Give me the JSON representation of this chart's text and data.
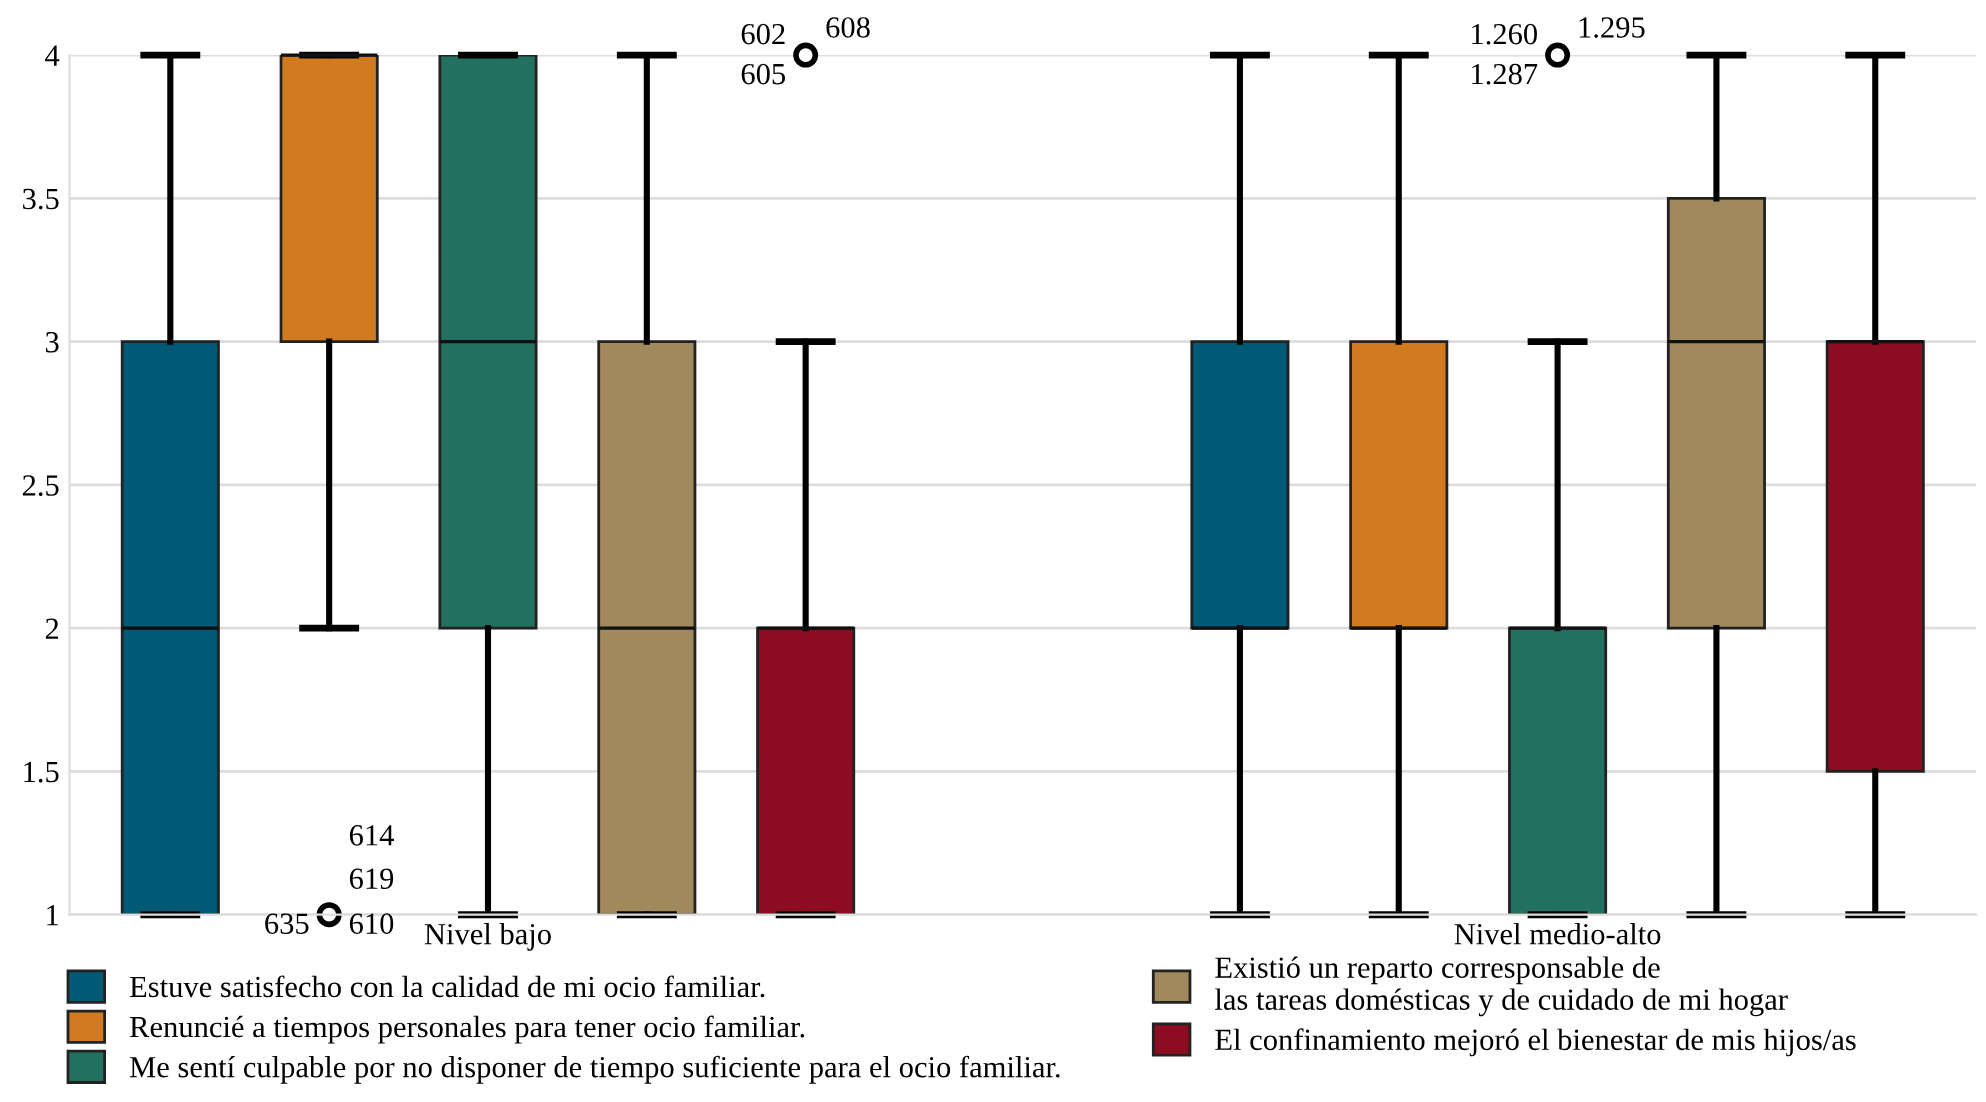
{
  "chart_data": {
    "type": "box",
    "categories": [
      "Nivel bajo",
      "Nivel medio-alto"
    ],
    "series": [
      {
        "name": "Estuve satisfecho con la calidad de mi ocio familiar.",
        "color": "#005a75",
        "boxes": [
          {
            "low": 1,
            "q1": 1,
            "median": 2,
            "q3": 3,
            "high": 4
          },
          {
            "low": 1,
            "q1": 2,
            "median": 2,
            "q3": 3,
            "high": 4
          }
        ]
      },
      {
        "name": "Renuncié a tiempos personales para tener ocio familiar.",
        "color": "#d07b20",
        "boxes": [
          {
            "low": 2,
            "q1": 3,
            "median": 4,
            "q3": 4,
            "high": 4,
            "outliers": [
              1
            ]
          },
          {
            "low": 1,
            "q1": 2,
            "median": 2,
            "q3": 3,
            "high": 4
          }
        ]
      },
      {
        "name": "Me sentí culpable por no disponer de tiempo suficiente para el ocio familiar.",
        "color": "#217060",
        "boxes": [
          {
            "low": 1,
            "q1": 2,
            "median": 3,
            "q3": 4,
            "high": 4
          },
          {
            "low": 1,
            "q1": 1,
            "median": 2,
            "q3": 2,
            "high": 3,
            "outliers": [
              4
            ]
          }
        ]
      },
      {
        "name": "Existió un reparto corresponsable de\nlas tareas domésticas y de cuidado de mi hogar",
        "color": "#a0895c",
        "boxes": [
          {
            "low": 1,
            "q1": 1,
            "median": 2,
            "q3": 3,
            "high": 4
          },
          {
            "low": 1,
            "q1": 2,
            "median": 3,
            "q3": 3.5,
            "high": 4
          }
        ]
      },
      {
        "name": "El confinamiento mejoró el bienestar de mis hijos/as",
        "color": "#8e0c22",
        "boxes": [
          {
            "low": 1,
            "q1": 1,
            "median": 2,
            "q3": 2,
            "high": 3,
            "outliers": [
              4
            ]
          },
          {
            "low": 1,
            "q1": 1.5,
            "median": 3,
            "q3": 3,
            "high": 4
          }
        ]
      }
    ],
    "ylim": [
      1,
      4
    ],
    "yticks": [
      1,
      1.5,
      2,
      2.5,
      3,
      3.5,
      4
    ],
    "grid": "y",
    "legend": "bottom",
    "annotations": [
      "614",
      "619",
      "635",
      "610",
      "602",
      "608",
      "605",
      "1.260",
      "1.295",
      "1.287"
    ]
  }
}
